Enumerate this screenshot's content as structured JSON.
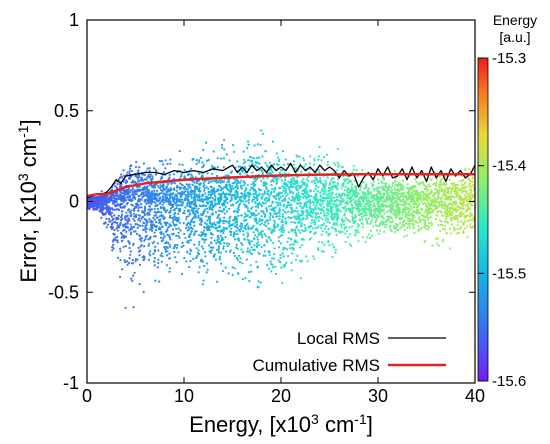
{
  "chart_data": {
    "type": "scatter",
    "xlabel": "Energy, [x10³ cm⁻¹]",
    "ylabel": "Error, [x10³ cm⁻¹]",
    "xlim": [
      0,
      40
    ],
    "ylim": [
      -1,
      1
    ],
    "xticks": [
      "0",
      "10",
      "20",
      "30",
      "40"
    ],
    "yticks": [
      "-1",
      "-0.5",
      "0",
      "0.5",
      "1"
    ],
    "grid": false,
    "legend_position": "bottom-right",
    "legend": [
      {
        "name": "Local RMS",
        "color": "#000000"
      },
      {
        "name": "Cumulative RMS",
        "color": "#e32222"
      }
    ],
    "colorbar": {
      "title_line1": "Energy",
      "title_line2": "[a.u.]",
      "range": [
        -15.6,
        -15.3
      ],
      "ticks": [
        "-15.3",
        "-15.4",
        "-15.5",
        "-15.6"
      ],
      "colormap": [
        "#7a1cf5",
        "#3c6cf0",
        "#17b0e6",
        "#2ce8c8",
        "#8cf06a",
        "#e8d83a",
        "#f77b22",
        "#e81e1e"
      ]
    },
    "scatter_envelope": {
      "x": [
        0.2,
        1,
        2,
        3,
        4,
        6,
        8,
        10,
        12,
        14,
        16,
        18,
        20,
        22,
        24,
        26,
        28,
        30,
        32,
        34,
        36,
        38,
        40
      ],
      "upper": [
        0.04,
        0.05,
        0.08,
        0.18,
        0.3,
        0.29,
        0.32,
        0.33,
        0.37,
        0.41,
        0.45,
        0.48,
        0.45,
        0.4,
        0.38,
        0.35,
        0.2,
        0.18,
        0.22,
        0.18,
        0.3,
        0.25,
        0.28
      ],
      "lower": [
        -0.06,
        -0.08,
        -0.2,
        -0.5,
        -0.78,
        -0.65,
        -0.55,
        -0.55,
        -0.6,
        -0.62,
        -0.65,
        -0.7,
        -0.62,
        -0.55,
        -0.45,
        -0.4,
        -0.32,
        -0.28,
        -0.3,
        -0.3,
        -0.35,
        -0.35,
        -0.35
      ]
    },
    "series": [
      {
        "name": "Local RMS",
        "color": "#000000",
        "x": [
          0.0,
          0.5,
          1.0,
          1.5,
          2.0,
          2.5,
          3.0,
          3.5,
          4.0,
          5.0,
          6.0,
          7.0,
          8.0,
          9.0,
          10.0,
          11.0,
          12.0,
          13.0,
          14.0,
          15.0,
          15.5,
          16.0,
          16.5,
          17.0,
          17.5,
          18.0,
          18.5,
          19.0,
          19.5,
          20.0,
          20.5,
          21.0,
          21.5,
          22.0,
          22.5,
          23.0,
          23.5,
          24.0,
          24.5,
          25.0,
          25.5,
          26.0,
          26.5,
          27.0,
          27.5,
          28.0,
          28.5,
          29.0,
          29.5,
          30.0,
          30.5,
          31.0,
          31.5,
          32.0,
          32.5,
          33.0,
          33.5,
          34.0,
          34.5,
          35.0,
          35.5,
          36.0,
          36.5,
          37.0,
          37.5,
          38.0,
          38.5,
          39.0,
          39.5,
          40.0
        ],
        "y": [
          0.02,
          0.03,
          0.04,
          0.04,
          0.05,
          0.08,
          0.12,
          0.1,
          0.14,
          0.15,
          0.16,
          0.16,
          0.15,
          0.17,
          0.16,
          0.17,
          0.16,
          0.18,
          0.17,
          0.2,
          0.16,
          0.19,
          0.16,
          0.2,
          0.17,
          0.19,
          0.16,
          0.2,
          0.17,
          0.19,
          0.17,
          0.21,
          0.16,
          0.2,
          0.17,
          0.19,
          0.16,
          0.2,
          0.17,
          0.19,
          0.17,
          0.13,
          0.17,
          0.14,
          0.15,
          0.08,
          0.13,
          0.16,
          0.12,
          0.18,
          0.14,
          0.19,
          0.13,
          0.14,
          0.18,
          0.12,
          0.19,
          0.13,
          0.17,
          0.11,
          0.19,
          0.13,
          0.17,
          0.11,
          0.18,
          0.14,
          0.17,
          0.13,
          0.15,
          0.2
        ]
      },
      {
        "name": "Cumulative RMS",
        "color": "#e32222",
        "x": [
          0.0,
          1.0,
          2.0,
          3.0,
          4.0,
          5.0,
          6.0,
          8.0,
          10.0,
          12.0,
          14.0,
          16.0,
          18.0,
          20.0,
          22.0,
          24.0,
          26.0,
          28.0,
          30.0,
          32.0,
          34.0,
          36.0,
          38.0,
          40.0
        ],
        "y": [
          0.03,
          0.04,
          0.04,
          0.06,
          0.08,
          0.09,
          0.1,
          0.11,
          0.12,
          0.125,
          0.13,
          0.135,
          0.14,
          0.143,
          0.146,
          0.148,
          0.149,
          0.15,
          0.15,
          0.15,
          0.15,
          0.15,
          0.15,
          0.15
        ]
      }
    ]
  }
}
